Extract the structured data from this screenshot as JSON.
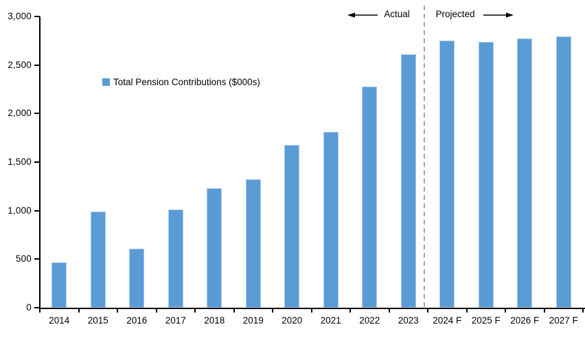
{
  "chart_data": {
    "type": "bar",
    "title": "",
    "legend": "Total Pension Contributions ($000s)",
    "categories": [
      "2014",
      "2015",
      "2016",
      "2017",
      "2018",
      "2019",
      "2020",
      "2021",
      "2022",
      "2023",
      "2024 F",
      "2025 F",
      "2026 F",
      "2027 F"
    ],
    "values": [
      465,
      990,
      610,
      1010,
      1230,
      1320,
      1675,
      1810,
      2275,
      2610,
      2750,
      2740,
      2775,
      2795
    ],
    "xlabel": "",
    "ylabel": "",
    "ylim": [
      0,
      3000
    ],
    "ytick_step": 500,
    "ytick_labels": [
      "0",
      "500",
      "1,000",
      "1,500",
      "2,000",
      "2,500",
      "3,000"
    ],
    "grid": false,
    "legend_position": "inside-upper-left",
    "bar_color": "#5B9BD5",
    "bar_edge_color": "#A9CBEC",
    "axis_color": "#000000",
    "divider_color": "#A6A6A6",
    "divider_after_category": "2023",
    "annotations": {
      "left_label": "Actual",
      "right_label": "Projected"
    }
  }
}
